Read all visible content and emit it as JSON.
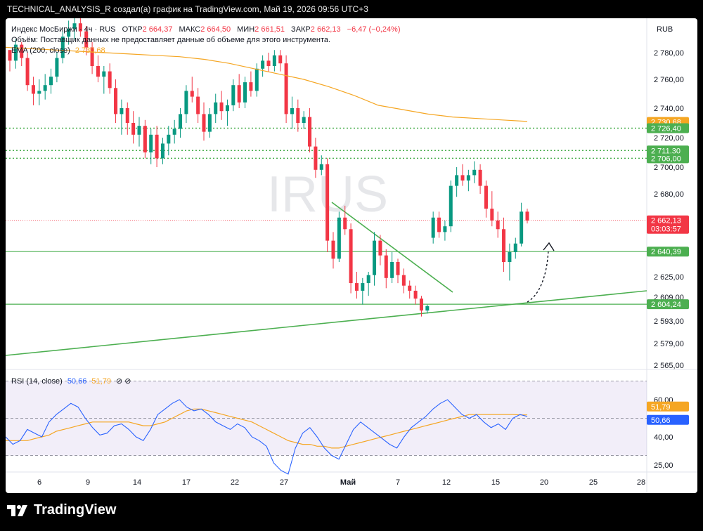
{
  "header": {
    "caption": "TECHNICAL_ANALYSIS_R создал(а) график на TradingView.com, Май 19, 2026 09:56 UTC+3"
  },
  "legend": {
    "symbol": "Индекс МосБиржи · 4ч · RUS",
    "o_label": "ОТКР",
    "o": "2 664,37",
    "h_label": "МАКС",
    "h": "2 664,50",
    "l_label": "МИН",
    "l": "2 661,51",
    "c_label": "ЗАКР",
    "c": "2 662,13",
    "change": "−6,47 (−0,24%)",
    "volume_note": "Объём: Поставщик данных не предоставляет данные об объеме для этого инструмента.",
    "ema_label": "EMA (200, close)",
    "ema_value": "2 730,68",
    "currency": "RUB",
    "watermark": "IRUS",
    "rsi_label": "RSI (14, close)",
    "rsi_value": "50,66",
    "rsi_ma_value": "51,79"
  },
  "colors": {
    "up": "#089981",
    "down": "#f23645",
    "ema": "#f5a623",
    "rsi": "#2962ff",
    "rsi_ma": "#f5a623",
    "level": "#4caf50",
    "price_tag": "#f23645"
  },
  "footer": {
    "brand": "TradingView"
  },
  "chart_data": [
    {
      "type": "candlestick",
      "title": "Индекс МосБиржи · 4ч · RUS",
      "price_axis_labels": [
        "2 780,00",
        "2 760,00",
        "2 740,00",
        "2 720,00",
        "2 700,00",
        "2 680,00",
        "2 625,00",
        "2 609,00",
        "2 593,00",
        "2 579,00",
        "2 565,00"
      ],
      "price_axis_pairs": [
        [
          2780,
          2780
        ],
        [
          2760,
          2760
        ],
        [
          2740,
          2740
        ],
        [
          2720,
          2720
        ],
        [
          2700,
          2700
        ],
        [
          2680,
          2680
        ],
        [
          2660,
          2662
        ],
        [
          2640,
          2640
        ],
        [
          2625,
          2625
        ],
        [
          2609,
          2609
        ],
        [
          2593,
          2593
        ],
        [
          2579,
          2579
        ],
        [
          2565,
          2565
        ]
      ],
      "x_ticks": [
        "6",
        "9",
        "14",
        "17",
        "22",
        "27",
        "Май",
        "7",
        "12",
        "15",
        "20",
        "25",
        "28"
      ],
      "candles": [
        [
          2782,
          2782,
          2766,
          2774
        ],
        [
          2774,
          2790,
          2768,
          2786
        ],
        [
          2786,
          2788,
          2770,
          2776
        ],
        [
          2776,
          2780,
          2752,
          2756
        ],
        [
          2756,
          2762,
          2742,
          2750
        ],
        [
          2750,
          2760,
          2742,
          2752
        ],
        [
          2752,
          2764,
          2746,
          2756
        ],
        [
          2756,
          2768,
          2750,
          2762
        ],
        [
          2762,
          2780,
          2758,
          2776
        ],
        [
          2776,
          2796,
          2772,
          2792
        ],
        [
          2792,
          2804,
          2786,
          2798
        ],
        [
          2798,
          2810,
          2790,
          2802
        ],
        [
          2802,
          2810,
          2792,
          2796
        ],
        [
          2796,
          2800,
          2778,
          2784
        ],
        [
          2784,
          2788,
          2764,
          2770
        ],
        [
          2770,
          2778,
          2758,
          2762
        ],
        [
          2762,
          2770,
          2750,
          2766
        ],
        [
          2766,
          2772,
          2750,
          2754
        ],
        [
          2754,
          2760,
          2730,
          2736
        ],
        [
          2736,
          2746,
          2722,
          2740
        ],
        [
          2740,
          2744,
          2722,
          2730
        ],
        [
          2730,
          2738,
          2716,
          2722
        ],
        [
          2722,
          2734,
          2714,
          2728
        ],
        [
          2728,
          2732,
          2706,
          2710
        ],
        [
          2710,
          2726,
          2702,
          2722
        ],
        [
          2722,
          2728,
          2700,
          2706
        ],
        [
          2706,
          2720,
          2702,
          2716
        ],
        [
          2716,
          2728,
          2708,
          2722
        ],
        [
          2722,
          2732,
          2716,
          2726
        ],
        [
          2726,
          2740,
          2720,
          2736
        ],
        [
          2736,
          2756,
          2730,
          2752
        ],
        [
          2752,
          2762,
          2744,
          2748
        ],
        [
          2748,
          2754,
          2730,
          2736
        ],
        [
          2736,
          2744,
          2718,
          2724
        ],
        [
          2724,
          2740,
          2720,
          2736
        ],
        [
          2736,
          2750,
          2730,
          2744
        ],
        [
          2744,
          2752,
          2732,
          2738
        ],
        [
          2738,
          2746,
          2728,
          2742
        ],
        [
          2742,
          2760,
          2738,
          2756
        ],
        [
          2756,
          2764,
          2740,
          2744
        ],
        [
          2744,
          2762,
          2740,
          2758
        ],
        [
          2758,
          2766,
          2748,
          2752
        ],
        [
          2752,
          2772,
          2748,
          2768
        ],
        [
          2768,
          2778,
          2762,
          2774
        ],
        [
          2774,
          2780,
          2766,
          2770
        ],
        [
          2770,
          2782,
          2766,
          2778
        ],
        [
          2778,
          2782,
          2766,
          2772
        ],
        [
          2772,
          2778,
          2730,
          2736
        ],
        [
          2736,
          2748,
          2726,
          2740
        ],
        [
          2740,
          2746,
          2724,
          2730
        ],
        [
          2730,
          2738,
          2726,
          2734
        ],
        [
          2734,
          2740,
          2710,
          2714
        ],
        [
          2714,
          2720,
          2692,
          2698
        ],
        [
          2698,
          2708,
          2694,
          2702
        ],
        [
          2702,
          2706,
          2640,
          2648
        ],
        [
          2648,
          2654,
          2630,
          2636
        ],
        [
          2636,
          2668,
          2634,
          2664
        ],
        [
          2664,
          2672,
          2652,
          2656
        ],
        [
          2656,
          2660,
          2612,
          2620
        ],
        [
          2620,
          2628,
          2608,
          2614
        ],
        [
          2614,
          2624,
          2604,
          2620
        ],
        [
          2620,
          2628,
          2610,
          2626
        ],
        [
          2626,
          2654,
          2618,
          2648
        ],
        [
          2648,
          2652,
          2632,
          2638
        ],
        [
          2638,
          2642,
          2616,
          2624
        ],
        [
          2624,
          2640,
          2620,
          2634
        ],
        [
          2634,
          2636,
          2620,
          2626
        ],
        [
          2626,
          2630,
          2612,
          2618
        ],
        [
          2618,
          2622,
          2608,
          2614
        ],
        [
          2614,
          2618,
          2604,
          2608
        ],
        [
          2608,
          2610,
          2596,
          2600
        ],
        [
          2600,
          2604,
          2598,
          2603
        ],
        [
          2650,
          2668,
          2646,
          2664
        ],
        [
          2664,
          2668,
          2650,
          2654
        ],
        [
          2654,
          2662,
          2648,
          2658
        ],
        [
          2658,
          2690,
          2654,
          2686
        ],
        [
          2686,
          2700,
          2678,
          2694
        ],
        [
          2694,
          2702,
          2686,
          2690
        ],
        [
          2690,
          2698,
          2682,
          2694
        ],
        [
          2694,
          2704,
          2688,
          2698
        ],
        [
          2698,
          2702,
          2680,
          2686
        ],
        [
          2686,
          2690,
          2664,
          2670
        ],
        [
          2670,
          2682,
          2658,
          2662
        ],
        [
          2662,
          2668,
          2650,
          2656
        ],
        [
          2656,
          2664,
          2628,
          2634
        ],
        [
          2634,
          2646,
          2622,
          2640
        ],
        [
          2640,
          2650,
          2636,
          2646
        ],
        [
          2646,
          2674,
          2644,
          2668
        ],
        [
          2668,
          2670,
          2660,
          2662
        ]
      ],
      "ema200": [
        2784,
        2783,
        2782,
        2781,
        2780,
        2779,
        2778,
        2777,
        2775,
        2772,
        2768,
        2764,
        2760,
        2755,
        2749,
        2742,
        2739,
        2736,
        2734,
        2733,
        2732,
        2731
      ],
      "levels": [
        2726.4,
        2711.3,
        2706.0,
        2640.39,
        2604.24
      ],
      "last_price": 2662.13,
      "price_tags": [
        {
          "value": 2730.68,
          "label": "2 730,68",
          "color": "#f5a623"
        },
        {
          "value": 2726.4,
          "label": "2 726,40",
          "color": "#4caf50"
        },
        {
          "value": 2711.3,
          "label": "2 711,30",
          "color": "#4caf50"
        },
        {
          "value": 2706.0,
          "label": "2 706,00",
          "color": "#4caf50"
        },
        {
          "value": 2662.13,
          "label": "2 662,13",
          "sub": "03:03:57",
          "color": "#f23645"
        },
        {
          "value": 2640.39,
          "label": "2 640,39",
          "color": "#4caf50"
        },
        {
          "value": 2604.24,
          "label": "2 604,24",
          "color": "#4caf50"
        }
      ]
    },
    {
      "type": "line",
      "title": "RSI (14, close)",
      "ylabels": [
        "60,00",
        "40,00",
        "25,00"
      ],
      "band": [
        30,
        70
      ],
      "rsi": [
        40,
        36,
        38,
        44,
        42,
        40,
        48,
        52,
        55,
        58,
        56,
        50,
        45,
        41,
        42,
        46,
        47,
        44,
        40,
        38,
        44,
        52,
        55,
        58,
        60,
        56,
        54,
        55,
        52,
        48,
        46,
        44,
        47,
        45,
        40,
        38,
        35,
        26,
        22,
        20,
        34,
        42,
        45,
        40,
        34,
        30,
        28,
        36,
        44,
        48,
        45,
        42,
        39,
        36,
        34,
        40,
        45,
        48,
        51,
        55,
        58,
        60,
        56,
        52,
        50,
        52,
        48,
        45,
        47,
        44,
        50,
        52,
        51
      ],
      "rsi_ma": [
        38,
        38,
        38,
        38,
        39,
        40,
        41,
        43,
        44,
        45,
        46,
        47,
        48,
        48,
        48,
        48,
        48,
        48,
        47,
        46,
        46,
        47,
        48,
        50,
        52,
        54,
        55,
        55,
        54,
        53,
        52,
        51,
        50,
        49,
        48,
        46,
        44,
        42,
        40,
        38,
        37,
        36,
        36,
        35,
        35,
        34,
        34,
        35,
        36,
        37,
        38,
        39,
        40,
        41,
        42,
        43,
        44,
        45,
        46,
        47,
        48,
        49,
        50,
        51,
        52,
        52,
        52,
        52,
        52,
        52,
        52,
        51.8,
        51.8
      ]
    }
  ]
}
